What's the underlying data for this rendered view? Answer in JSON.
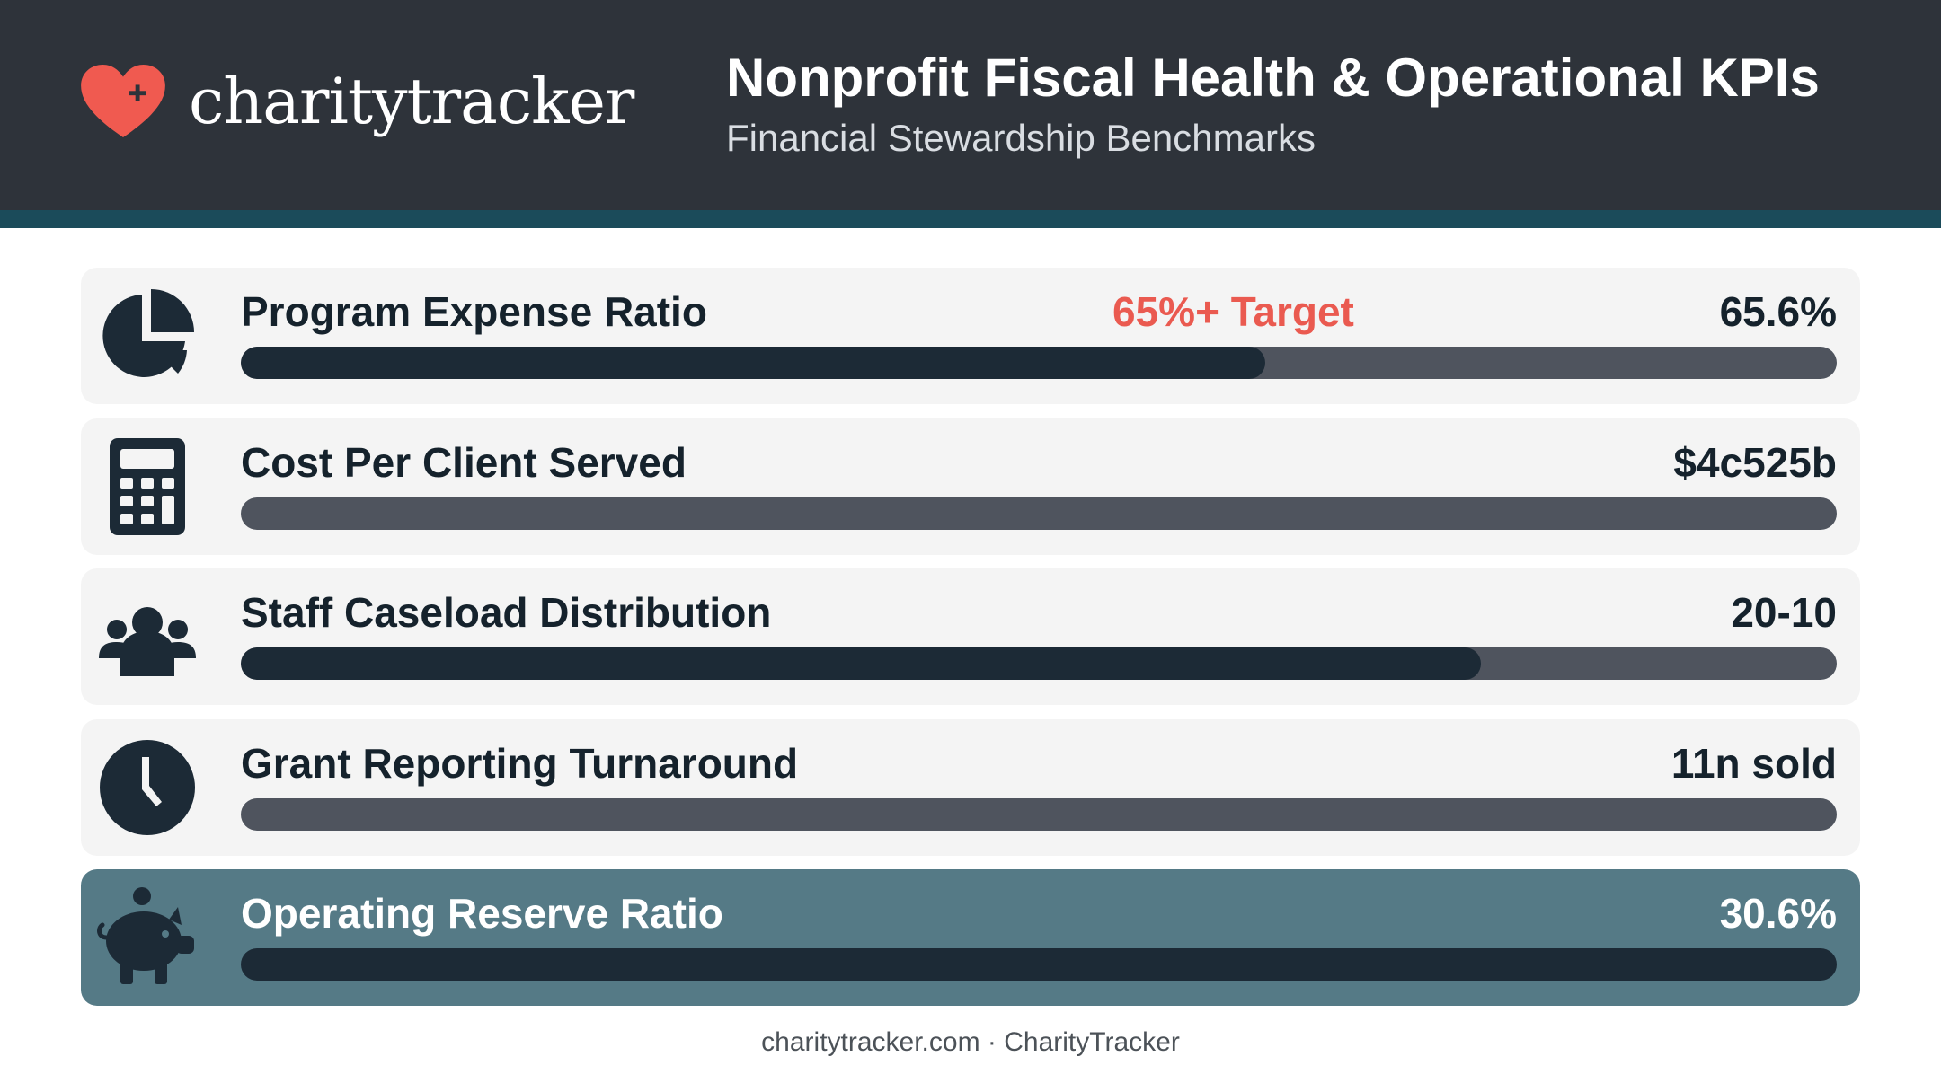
{
  "brand": {
    "logo_text": "charitytracker",
    "logo_icon": "heart-plus-icon",
    "logo_color": "#f05a50"
  },
  "header": {
    "title": "Nonprofit Fiscal Health & Operational KPIs",
    "subtitle": "Financial Stewardship Benchmarks"
  },
  "colors": {
    "header_bg": "#2e333a",
    "accent_stripe": "#1b4b5a",
    "bar_fill": "#1c2a36",
    "bar_track": "#4f545e",
    "target_text": "#ea5a50",
    "highlight_card": "#557a86"
  },
  "metrics": [
    {
      "label": "Program Expense Ratio",
      "target": "65%+ Target",
      "value": "65.6%",
      "icon": "pie-chart-icon",
      "fill_fraction": 0.642,
      "highlighted": false
    },
    {
      "label": "Cost Per Client Served",
      "target": "",
      "value": "$4c525b",
      "icon": "calculator-icon",
      "fill_fraction": 0.0,
      "highlighted": false
    },
    {
      "label": "Staff Caseload Distribution",
      "target": "",
      "value": "20-10",
      "icon": "users-group-icon",
      "fill_fraction": 0.777,
      "highlighted": false
    },
    {
      "label": "Grant Reporting Turnaround",
      "target": "",
      "value": "11n sold",
      "icon": "clock-icon",
      "fill_fraction": 0.0,
      "highlighted": false
    },
    {
      "label": "Operating Reserve Ratio",
      "target": "",
      "value": "30.6%",
      "icon": "piggy-bank-icon",
      "fill_fraction": 0.0,
      "highlighted": true
    }
  ],
  "footer": {
    "text": "charitytracker.com · CharityTracker"
  }
}
